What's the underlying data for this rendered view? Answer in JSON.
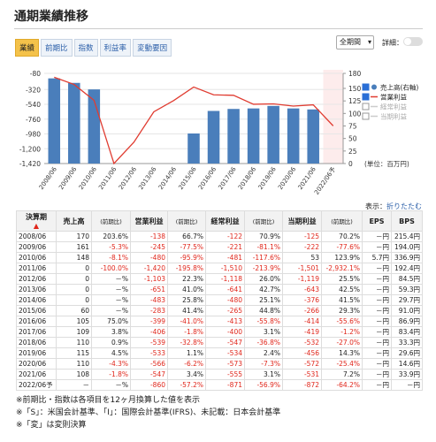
{
  "header": {
    "title": "通期業績推移"
  },
  "tabs": [
    "業績",
    "前期比",
    "指数",
    "利益率",
    "変動要因"
  ],
  "controls": {
    "period": "全期間",
    "detail": "詳細："
  },
  "chart_data": {
    "type": "combo",
    "categories": [
      "2008/06",
      "2009/06",
      "2010/06",
      "2011/06",
      "2012/06",
      "2013/06",
      "2014/06",
      "2015/06",
      "2016/06",
      "2017/06",
      "2018/06",
      "2019/06",
      "2020/06",
      "2021/06",
      "2022/06予"
    ],
    "series": [
      {
        "name": "売上高(右軸)",
        "color": "#4a7ebb",
        "type": "bar",
        "axis": "y2",
        "values": [
          170,
          161,
          148,
          0,
          0,
          0,
          0,
          60,
          105,
          109,
          110,
          115,
          110,
          108,
          null
        ]
      },
      {
        "name": "営業利益",
        "color": "#e03c31",
        "type": "line",
        "values": [
          -138,
          -245,
          -480,
          -1420,
          -1103,
          -651,
          -483,
          -283,
          -399,
          -406,
          -539,
          -533,
          -566,
          -547,
          -860
        ]
      }
    ],
    "hidden_series": [
      "経常利益",
      "当期利益"
    ],
    "ylim": [
      -1420,
      -80
    ],
    "yticks": [
      -80,
      -320,
      -540,
      -760,
      -980,
      {
        "value": -1200,
        "label": "-1,200"
      },
      {
        "value": -1420,
        "label": "-1,420"
      }
    ],
    "y2lim": [
      0,
      180
    ],
    "y2ticks": [
      0,
      25,
      50,
      75,
      100,
      125,
      150,
      180
    ],
    "unit": "(単位：百万円)",
    "grid": true,
    "forecast_shade": "#fdecec"
  },
  "table": {
    "toggle_label": "表示：",
    "toggle_link": "折りたたむ",
    "sort_indicator": "▲",
    "columns": [
      "決算期",
      "売上高",
      "(前期比)",
      "営業利益",
      "(前期比)",
      "経常利益",
      "(前期比)",
      "当期利益",
      "(前期比)",
      "EPS",
      "BPS"
    ],
    "rows": [
      [
        "2008/06",
        "170",
        "203.6%",
        "-138",
        "66.7%",
        "-122",
        "70.9%",
        "-125",
        "70.2%",
        "－円",
        "215.4円"
      ],
      [
        "2009/06",
        "161",
        "-5.3%",
        "-245",
        "-77.5%",
        "-221",
        "-81.1%",
        "-222",
        "-77.6%",
        "－円",
        "194.0円"
      ],
      [
        "2010/06",
        "148",
        "-8.1%",
        "-480",
        "-95.9%",
        "-481",
        "-117.6%",
        "53",
        "123.9%",
        "5.7円",
        "336.9円"
      ],
      [
        "2011/06",
        "0",
        "-100.0%",
        "-1,420",
        "-195.8%",
        "-1,510",
        "-213.9%",
        "-1,501",
        "-2,932.1%",
        "－円",
        "192.4円"
      ],
      [
        "2012/06",
        "0",
        "－%",
        "-1,103",
        "22.3%",
        "-1,118",
        "26.0%",
        "-1,119",
        "25.5%",
        "－円",
        "84.5円"
      ],
      [
        "2013/06",
        "0",
        "－%",
        "-651",
        "41.0%",
        "-641",
        "42.7%",
        "-643",
        "42.5%",
        "－円",
        "59.3円"
      ],
      [
        "2014/06",
        "0",
        "－%",
        "-483",
        "25.8%",
        "-480",
        "25.1%",
        "-376",
        "41.5%",
        "－円",
        "29.7円"
      ],
      [
        "2015/06",
        "60",
        "－%",
        "-283",
        "41.4%",
        "-265",
        "44.8%",
        "-266",
        "29.3%",
        "－円",
        "91.0円"
      ],
      [
        "2016/06",
        "105",
        "75.0%",
        "-399",
        "-41.0%",
        "-413",
        "-55.8%",
        "-414",
        "-55.6%",
        "－円",
        "86.9円"
      ],
      [
        "2017/06",
        "109",
        "3.8%",
        "-406",
        "-1.8%",
        "-400",
        "3.1%",
        "-419",
        "-1.2%",
        "－円",
        "83.4円"
      ],
      [
        "2018/06",
        "110",
        "0.9%",
        "-539",
        "-32.8%",
        "-547",
        "-36.8%",
        "-532",
        "-27.0%",
        "－円",
        "33.3円"
      ],
      [
        "2019/06",
        "115",
        "4.5%",
        "-533",
        "1.1%",
        "-534",
        "2.4%",
        "-456",
        "14.3%",
        "－円",
        "29.6円"
      ],
      [
        "2020/06",
        "110",
        "-4.3%",
        "-566",
        "-6.2%",
        "-573",
        "-7.3%",
        "-572",
        "-25.4%",
        "－円",
        "14.6円"
      ],
      [
        "2021/06",
        "108",
        "-1.8%",
        "-547",
        "3.4%",
        "-555",
        "3.1%",
        "-531",
        "7.2%",
        "－円",
        "33.9円"
      ],
      [
        "2022/06予",
        "－",
        "－%",
        "-860",
        "-57.2%",
        "-871",
        "-56.9%",
        "-872",
        "-64.2%",
        "－円",
        "－円"
      ]
    ]
  },
  "notes": [
    "※前期比・指数は各項目を12ヶ月換算した値を表示",
    "※「S」：米国会計基準、「I」：国際会計基準(IFRS)、未記載：日本会計基準",
    "※「変」は変則決算"
  ]
}
